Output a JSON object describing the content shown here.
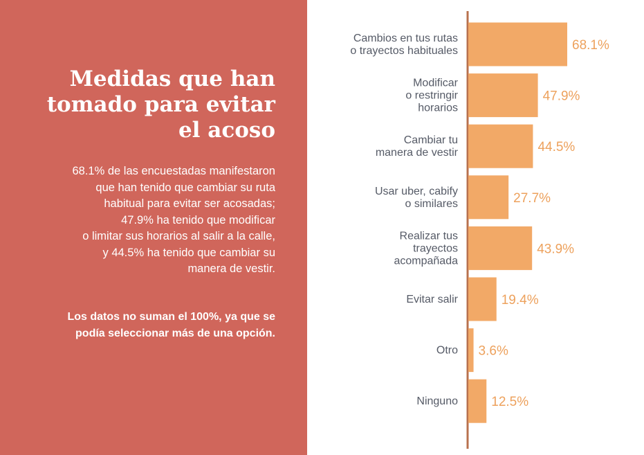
{
  "panel": {
    "title_lines": [
      "Medidas que han",
      "tomado para evitar",
      "el acoso"
    ],
    "summary_lines": [
      "68.1% de las encuestadas manifestaron",
      "que han tenido que cambiar su ruta",
      "habitual para evitar ser acosadas;",
      "47.9% ha tenido que modificar",
      "o limitar sus horarios al salir a la calle,",
      "y 44.5% ha tenido que cambiar su",
      "manera de vestir."
    ],
    "note_lines": [
      "Los datos no suman el 100%, ya que se",
      "podía seleccionar más de una opción."
    ]
  },
  "chart_data": {
    "type": "bar",
    "orientation": "horizontal",
    "title": "Medidas que han tomado para evitar el acoso",
    "unit": "%",
    "categories": [
      [
        "Cambios en tus rutas",
        "o trayectos habituales"
      ],
      [
        "Modificar",
        "o restringir",
        "horarios"
      ],
      [
        "Cambiar tu",
        "manera de vestir"
      ],
      [
        "Usar uber, cabify",
        "o similares"
      ],
      [
        "Realizar tus",
        "trayectos",
        "acompañada"
      ],
      [
        "Evitar salir"
      ],
      [
        "Otro"
      ],
      [
        "Ninguno"
      ]
    ],
    "values": [
      68.1,
      47.9,
      44.5,
      27.7,
      43.9,
      19.4,
      3.6,
      12.5
    ],
    "value_labels": [
      "68.1%",
      "47.9%",
      "44.5%",
      "27.7%",
      "43.9%",
      "19.4%",
      "3.6%",
      "12.5%"
    ],
    "colors": {
      "bar": "#f2a967",
      "value_text": "#eda15c",
      "axis": "#b8714e",
      "panel": "#d0665b"
    }
  }
}
